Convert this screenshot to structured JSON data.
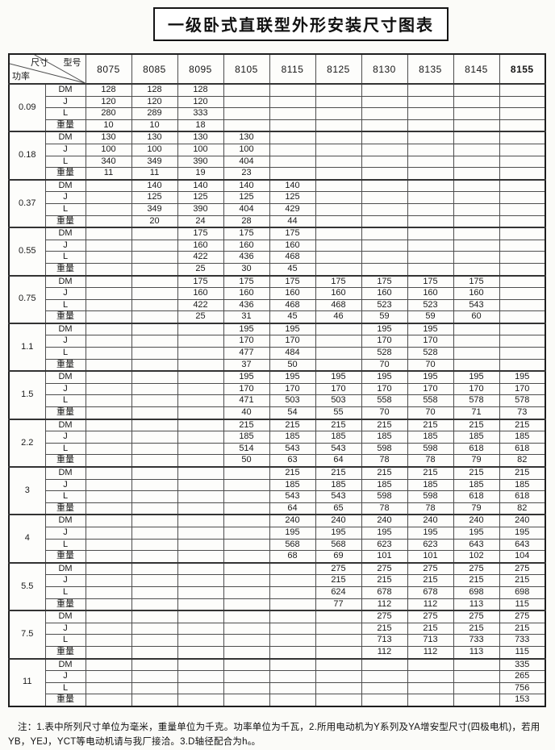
{
  "page": {
    "title": "一级卧式直联型外形安装尺寸图表"
  },
  "table": {
    "corner": {
      "dim": "尺寸",
      "model": "型号",
      "power": "功率"
    },
    "models": [
      "8075",
      "8085",
      "8095",
      "8105",
      "8115",
      "8125",
      "8130",
      "8135",
      "8145",
      "8155"
    ],
    "groups": [
      {
        "power": "0.09",
        "rows": [
          {
            "label": "DM",
            "values": [
              "128",
              "128",
              "128",
              "",
              "",
              "",
              "",
              "",
              "",
              ""
            ]
          },
          {
            "label": "J",
            "values": [
              "120",
              "120",
              "120",
              "",
              "",
              "",
              "",
              "",
              "",
              ""
            ]
          },
          {
            "label": "L",
            "values": [
              "280",
              "289",
              "333",
              "",
              "",
              "",
              "",
              "",
              "",
              ""
            ]
          },
          {
            "label": "重量",
            "values": [
              "10",
              "10",
              "18",
              "",
              "",
              "",
              "",
              "",
              "",
              ""
            ]
          }
        ]
      },
      {
        "power": "0.18",
        "rows": [
          {
            "label": "DM",
            "values": [
              "130",
              "130",
              "130",
              "130",
              "",
              "",
              "",
              "",
              "",
              ""
            ]
          },
          {
            "label": "J",
            "values": [
              "100",
              "100",
              "100",
              "100",
              "",
              "",
              "",
              "",
              "",
              ""
            ]
          },
          {
            "label": "L",
            "values": [
              "340",
              "349",
              "390",
              "404",
              "",
              "",
              "",
              "",
              "",
              ""
            ]
          },
          {
            "label": "重量",
            "values": [
              "11",
              "11",
              "19",
              "23",
              "",
              "",
              "",
              "",
              "",
              ""
            ]
          }
        ]
      },
      {
        "power": "0.37",
        "rows": [
          {
            "label": "DM",
            "values": [
              "",
              "140",
              "140",
              "140",
              "140",
              "",
              "",
              "",
              "",
              ""
            ]
          },
          {
            "label": "J",
            "values": [
              "",
              "125",
              "125",
              "125",
              "125",
              "",
              "",
              "",
              "",
              ""
            ]
          },
          {
            "label": "L",
            "values": [
              "",
              "349",
              "390",
              "404",
              "429",
              "",
              "",
              "",
              "",
              ""
            ]
          },
          {
            "label": "重量",
            "values": [
              "",
              "20",
              "24",
              "28",
              "44",
              "",
              "",
              "",
              "",
              ""
            ]
          }
        ]
      },
      {
        "power": "0.55",
        "rows": [
          {
            "label": "DM",
            "values": [
              "",
              "",
              "175",
              "175",
              "175",
              "",
              "",
              "",
              "",
              ""
            ]
          },
          {
            "label": "J",
            "values": [
              "",
              "",
              "160",
              "160",
              "160",
              "",
              "",
              "",
              "",
              ""
            ]
          },
          {
            "label": "L",
            "values": [
              "",
              "",
              "422",
              "436",
              "468",
              "",
              "",
              "",
              "",
              ""
            ]
          },
          {
            "label": "重量",
            "values": [
              "",
              "",
              "25",
              "30",
              "45",
              "",
              "",
              "",
              "",
              ""
            ]
          }
        ]
      },
      {
        "power": "0.75",
        "rows": [
          {
            "label": "DM",
            "values": [
              "",
              "",
              "175",
              "175",
              "175",
              "175",
              "175",
              "175",
              "175",
              ""
            ]
          },
          {
            "label": "J",
            "values": [
              "",
              "",
              "160",
              "160",
              "160",
              "160",
              "160",
              "160",
              "160",
              ""
            ]
          },
          {
            "label": "L",
            "values": [
              "",
              "",
              "422",
              "436",
              "468",
              "468",
              "523",
              "523",
              "543",
              ""
            ]
          },
          {
            "label": "重量",
            "values": [
              "",
              "",
              "25",
              "31",
              "45",
              "46",
              "59",
              "59",
              "60",
              ""
            ]
          }
        ]
      },
      {
        "power": "1.1",
        "rows": [
          {
            "label": "DM",
            "values": [
              "",
              "",
              "",
              "195",
              "195",
              "",
              "195",
              "195",
              "",
              ""
            ]
          },
          {
            "label": "J",
            "values": [
              "",
              "",
              "",
              "170",
              "170",
              "",
              "170",
              "170",
              "",
              ""
            ]
          },
          {
            "label": "L",
            "values": [
              "",
              "",
              "",
              "477",
              "484",
              "",
              "528",
              "528",
              "",
              ""
            ]
          },
          {
            "label": "重量",
            "values": [
              "",
              "",
              "",
              "37",
              "50",
              "",
              "70",
              "70",
              "",
              ""
            ]
          }
        ]
      },
      {
        "power": "1.5",
        "rows": [
          {
            "label": "DM",
            "values": [
              "",
              "",
              "",
              "195",
              "195",
              "195",
              "195",
              "195",
              "195",
              "195"
            ]
          },
          {
            "label": "J",
            "values": [
              "",
              "",
              "",
              "170",
              "170",
              "170",
              "170",
              "170",
              "170",
              "170"
            ]
          },
          {
            "label": "L",
            "values": [
              "",
              "",
              "",
              "471",
              "503",
              "503",
              "558",
              "558",
              "578",
              "578"
            ]
          },
          {
            "label": "重量",
            "values": [
              "",
              "",
              "",
              "40",
              "54",
              "55",
              "70",
              "70",
              "71",
              "73"
            ]
          }
        ]
      },
      {
        "power": "2.2",
        "rows": [
          {
            "label": "DM",
            "values": [
              "",
              "",
              "",
              "215",
              "215",
              "215",
              "215",
              "215",
              "215",
              "215"
            ]
          },
          {
            "label": "J",
            "values": [
              "",
              "",
              "",
              "185",
              "185",
              "185",
              "185",
              "185",
              "185",
              "185"
            ]
          },
          {
            "label": "L",
            "values": [
              "",
              "",
              "",
              "514",
              "543",
              "543",
              "598",
              "598",
              "618",
              "618"
            ]
          },
          {
            "label": "重量",
            "values": [
              "",
              "",
              "",
              "50",
              "63",
              "64",
              "78",
              "78",
              "79",
              "82"
            ]
          }
        ]
      },
      {
        "power": "3",
        "rows": [
          {
            "label": "DM",
            "values": [
              "",
              "",
              "",
              "",
              "215",
              "215",
              "215",
              "215",
              "215",
              "215"
            ]
          },
          {
            "label": "J",
            "values": [
              "",
              "",
              "",
              "",
              "185",
              "185",
              "185",
              "185",
              "185",
              "185"
            ]
          },
          {
            "label": "L",
            "values": [
              "",
              "",
              "",
              "",
              "543",
              "543",
              "598",
              "598",
              "618",
              "618"
            ]
          },
          {
            "label": "重量",
            "values": [
              "",
              "",
              "",
              "",
              "64",
              "65",
              "78",
              "78",
              "79",
              "82"
            ]
          }
        ]
      },
      {
        "power": "4",
        "rows": [
          {
            "label": "DM",
            "values": [
              "",
              "",
              "",
              "",
              "240",
              "240",
              "240",
              "240",
              "240",
              "240"
            ]
          },
          {
            "label": "J",
            "values": [
              "",
              "",
              "",
              "",
              "195",
              "195",
              "195",
              "195",
              "195",
              "195"
            ]
          },
          {
            "label": "L",
            "values": [
              "",
              "",
              "",
              "",
              "568",
              "568",
              "623",
              "623",
              "643",
              "643"
            ]
          },
          {
            "label": "重量",
            "values": [
              "",
              "",
              "",
              "",
              "68",
              "69",
              "101",
              "101",
              "102",
              "104"
            ]
          }
        ]
      },
      {
        "power": "5.5",
        "rows": [
          {
            "label": "DM",
            "values": [
              "",
              "",
              "",
              "",
              "",
              "275",
              "275",
              "275",
              "275",
              "275"
            ]
          },
          {
            "label": "J",
            "values": [
              "",
              "",
              "",
              "",
              "",
              "215",
              "215",
              "215",
              "215",
              "215"
            ]
          },
          {
            "label": "L",
            "values": [
              "",
              "",
              "",
              "",
              "",
              "624",
              "678",
              "678",
              "698",
              "698"
            ]
          },
          {
            "label": "重量",
            "values": [
              "",
              "",
              "",
              "",
              "",
              "77",
              "112",
              "112",
              "113",
              "115"
            ]
          }
        ]
      },
      {
        "power": "7.5",
        "rows": [
          {
            "label": "DM",
            "values": [
              "",
              "",
              "",
              "",
              "",
              "",
              "275",
              "275",
              "275",
              "275"
            ]
          },
          {
            "label": "J",
            "values": [
              "",
              "",
              "",
              "",
              "",
              "",
              "215",
              "215",
              "215",
              "215"
            ]
          },
          {
            "label": "L",
            "values": [
              "",
              "",
              "",
              "",
              "",
              "",
              "713",
              "713",
              "733",
              "733"
            ]
          },
          {
            "label": "重量",
            "values": [
              "",
              "",
              "",
              "",
              "",
              "",
              "112",
              "112",
              "113",
              "115"
            ]
          }
        ]
      },
      {
        "power": "11",
        "rows": [
          {
            "label": "DM",
            "values": [
              "",
              "",
              "",
              "",
              "",
              "",
              "",
              "",
              "",
              "335"
            ]
          },
          {
            "label": "J",
            "values": [
              "",
              "",
              "",
              "",
              "",
              "",
              "",
              "",
              "",
              "265"
            ]
          },
          {
            "label": "L",
            "values": [
              "",
              "",
              "",
              "",
              "",
              "",
              "",
              "",
              "",
              "756"
            ]
          },
          {
            "label": "重量",
            "values": [
              "",
              "",
              "",
              "",
              "",
              "",
              "",
              "",
              "",
              "153"
            ]
          }
        ]
      }
    ]
  },
  "note": "注：1.表中所列尺寸单位为毫米，重量单位为千克。功率单位为千瓦，2.所用电动机为Y系列及YA增安型尺寸(四极电机)，若用YB，YEJ，YCT等电动机请与我厂接洽。3.D轴径配合为h₆。"
}
